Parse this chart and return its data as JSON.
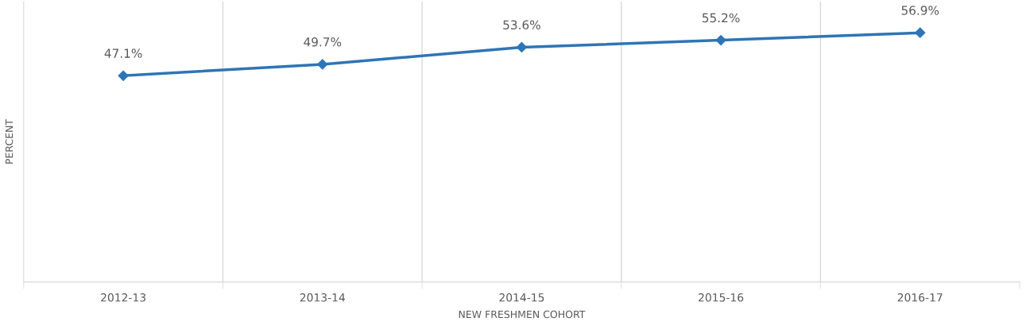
{
  "chart_data": {
    "type": "line",
    "xlabel": "NEW FRESHMEN COHORT",
    "ylabel": "PERCENT",
    "categories": [
      "2012-13",
      "2013-14",
      "2014-15",
      "2015-16",
      "2016-17"
    ],
    "series": [
      {
        "color": "#2e75b6",
        "values": [
          47.1,
          49.7,
          53.6,
          55.2,
          56.9
        ],
        "value_labels": [
          "47.1%",
          "49.7%",
          "53.6%",
          "55.2%",
          "56.9%"
        ]
      }
    ],
    "relative": false,
    "ylim": [
      0,
      64
    ],
    "tick_labels": "x",
    "grid": "x",
    "marker": "diamond",
    "line_style": "solid",
    "legend": false
  }
}
